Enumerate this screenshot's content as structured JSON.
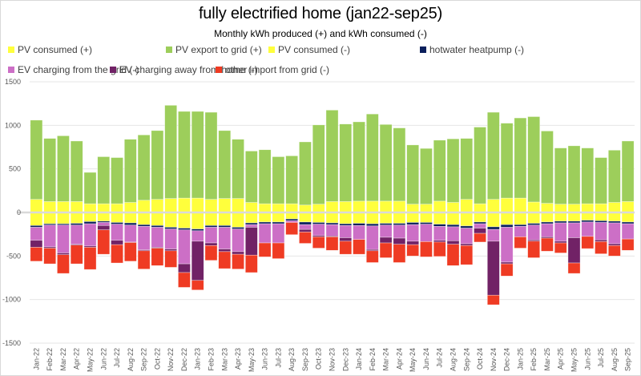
{
  "chart_data": {
    "type": "bar",
    "stacked": true,
    "title": "fully electrified home (jan22-sep25)",
    "subtitle": "Monthly kWh produced (+) and kWh consumed (-)",
    "xlabel": "",
    "ylabel": "",
    "ylim": [
      -1500,
      1500
    ],
    "yticks": [
      1500,
      1000,
      500,
      0,
      -500,
      -1000,
      -1500
    ],
    "grid": true,
    "legend_position": "top",
    "categories": [
      "Jan-22",
      "Feb-22",
      "Mar-22",
      "Apr-22",
      "May-22",
      "Jun-22",
      "Jul-22",
      "Aug-22",
      "Sep-22",
      "Oct-22",
      "Nov-22",
      "Dec-22",
      "Jan-23",
      "Feb-23",
      "Mar-23",
      "Apr-23",
      "May-23",
      "Jun-23",
      "Jul-23",
      "Aug-23",
      "Sep-23",
      "Oct-23",
      "Nov-23",
      "Dec-23",
      "Jan-24",
      "Feb-24",
      "Mar-24",
      "Apr-24",
      "May-24",
      "Jun-24",
      "Jul-24",
      "Aug-24",
      "Sep-24",
      "Oct-24",
      "Nov-24",
      "Dec-24",
      "Jan-25",
      "Feb-25",
      "Mar-25",
      "Apr-25",
      "May-25",
      "Jun-25",
      "Jul-25",
      "Aug-25",
      "Sep-25"
    ],
    "series": [
      {
        "name": "PV consumed (+)",
        "color": "#ffff3c",
        "sign": "+",
        "values": [
          150,
          125,
          125,
          125,
          100,
          100,
          100,
          115,
          140,
          150,
          160,
          165,
          165,
          150,
          160,
          160,
          115,
          100,
          100,
          100,
          85,
          95,
          125,
          125,
          130,
          130,
          130,
          130,
          95,
          95,
          130,
          115,
          150,
          100,
          150,
          165,
          165,
          120,
          105,
          95,
          95,
          100,
          100,
          115,
          125
        ]
      },
      {
        "name": "PV export to grid (+)",
        "color": "#9dce5b",
        "sign": "+",
        "values": [
          910,
          725,
          755,
          695,
          360,
          540,
          530,
          725,
          750,
          790,
          1070,
          995,
          995,
          1000,
          780,
          680,
          590,
          620,
          540,
          550,
          725,
          910,
          1050,
          890,
          910,
          1000,
          880,
          840,
          680,
          640,
          700,
          730,
          700,
          880,
          1000,
          860,
          920,
          980,
          830,
          645,
          670,
          640,
          530,
          600,
          695
        ]
      },
      {
        "name": "PV consumed (-)",
        "color": "#ffff3c",
        "sign": "-",
        "values": [
          150,
          130,
          130,
          125,
          105,
          100,
          115,
          120,
          140,
          150,
          170,
          180,
          190,
          150,
          150,
          170,
          120,
          110,
          110,
          75,
          110,
          115,
          120,
          130,
          125,
          130,
          125,
          125,
          115,
          115,
          135,
          140,
          155,
          110,
          165,
          140,
          140,
          125,
          110,
          100,
          100,
          90,
          95,
          100,
          110
        ]
      },
      {
        "name": "hotwater heatpump (-)",
        "color": "#0a1f5c",
        "sign": "-",
        "values": [
          20,
          15,
          15,
          20,
          25,
          15,
          20,
          25,
          20,
          20,
          20,
          20,
          20,
          20,
          20,
          20,
          20,
          20,
          20,
          20,
          30,
          20,
          20,
          20,
          25,
          25,
          20,
          20,
          25,
          20,
          25,
          25,
          25,
          20,
          30,
          30,
          20,
          20,
          20,
          20,
          20,
          20,
          20,
          20,
          20
        ]
      },
      {
        "name": "EV charging from the grid (-)",
        "color": "#cc6fc6",
        "sign": "-",
        "values": [
          150,
          250,
          320,
          220,
          255,
          35,
          185,
          195,
          270,
          230,
          230,
          390,
          120,
          180,
          250,
          260,
          30,
          220,
          220,
          20,
          55,
          130,
          130,
          140,
          160,
          270,
          140,
          150,
          190,
          200,
          160,
          160,
          180,
          50,
          135,
          400,
          120,
          170,
          150,
          210,
          170,
          165,
          200,
          240,
          175
        ]
      },
      {
        "name": "EV charging away from home (-)",
        "color": "#712266",
        "sign": "-",
        "values": [
          80,
          15,
          20,
          10,
          15,
          50,
          50,
          5,
          10,
          10,
          20,
          100,
          450,
          30,
          30,
          30,
          320,
          0,
          0,
          0,
          30,
          15,
          10,
          40,
          0,
          15,
          65,
          70,
          40,
          0,
          20,
          40,
          20,
          60,
          620,
          20,
          0,
          15,
          15,
          20,
          290,
          0,
          20,
          20,
          0
        ]
      },
      {
        "name": "other import from grid (-)",
        "color": "#ef3b23",
        "sign": "-",
        "values": [
          160,
          180,
          215,
          215,
          255,
          280,
          210,
          215,
          210,
          200,
          190,
          170,
          110,
          170,
          195,
          170,
          200,
          160,
          180,
          140,
          130,
          130,
          155,
          150,
          170,
          135,
          170,
          210,
          130,
          175,
          165,
          245,
          220,
          100,
          110,
          140,
          130,
          190,
          150,
          115,
          120,
          140,
          140,
          120,
          130
        ]
      }
    ]
  },
  "legend": {
    "items": [
      {
        "label": "PV consumed (+)",
        "color": "#ffff3c"
      },
      {
        "label": "PV export to grid (+)",
        "color": "#9dce5b"
      },
      {
        "label": "PV consumed (-)",
        "color": "#ffff3c"
      },
      {
        "label": "hotwater heatpump (-)",
        "color": "#0a1f5c"
      },
      {
        "label": "EV charging from the grid (-)",
        "color": "#cc6fc6"
      },
      {
        "label": "EV charging away from home (-)",
        "color": "#712266"
      },
      {
        "label": "other import from grid (-)",
        "color": "#ef3b23"
      }
    ]
  }
}
